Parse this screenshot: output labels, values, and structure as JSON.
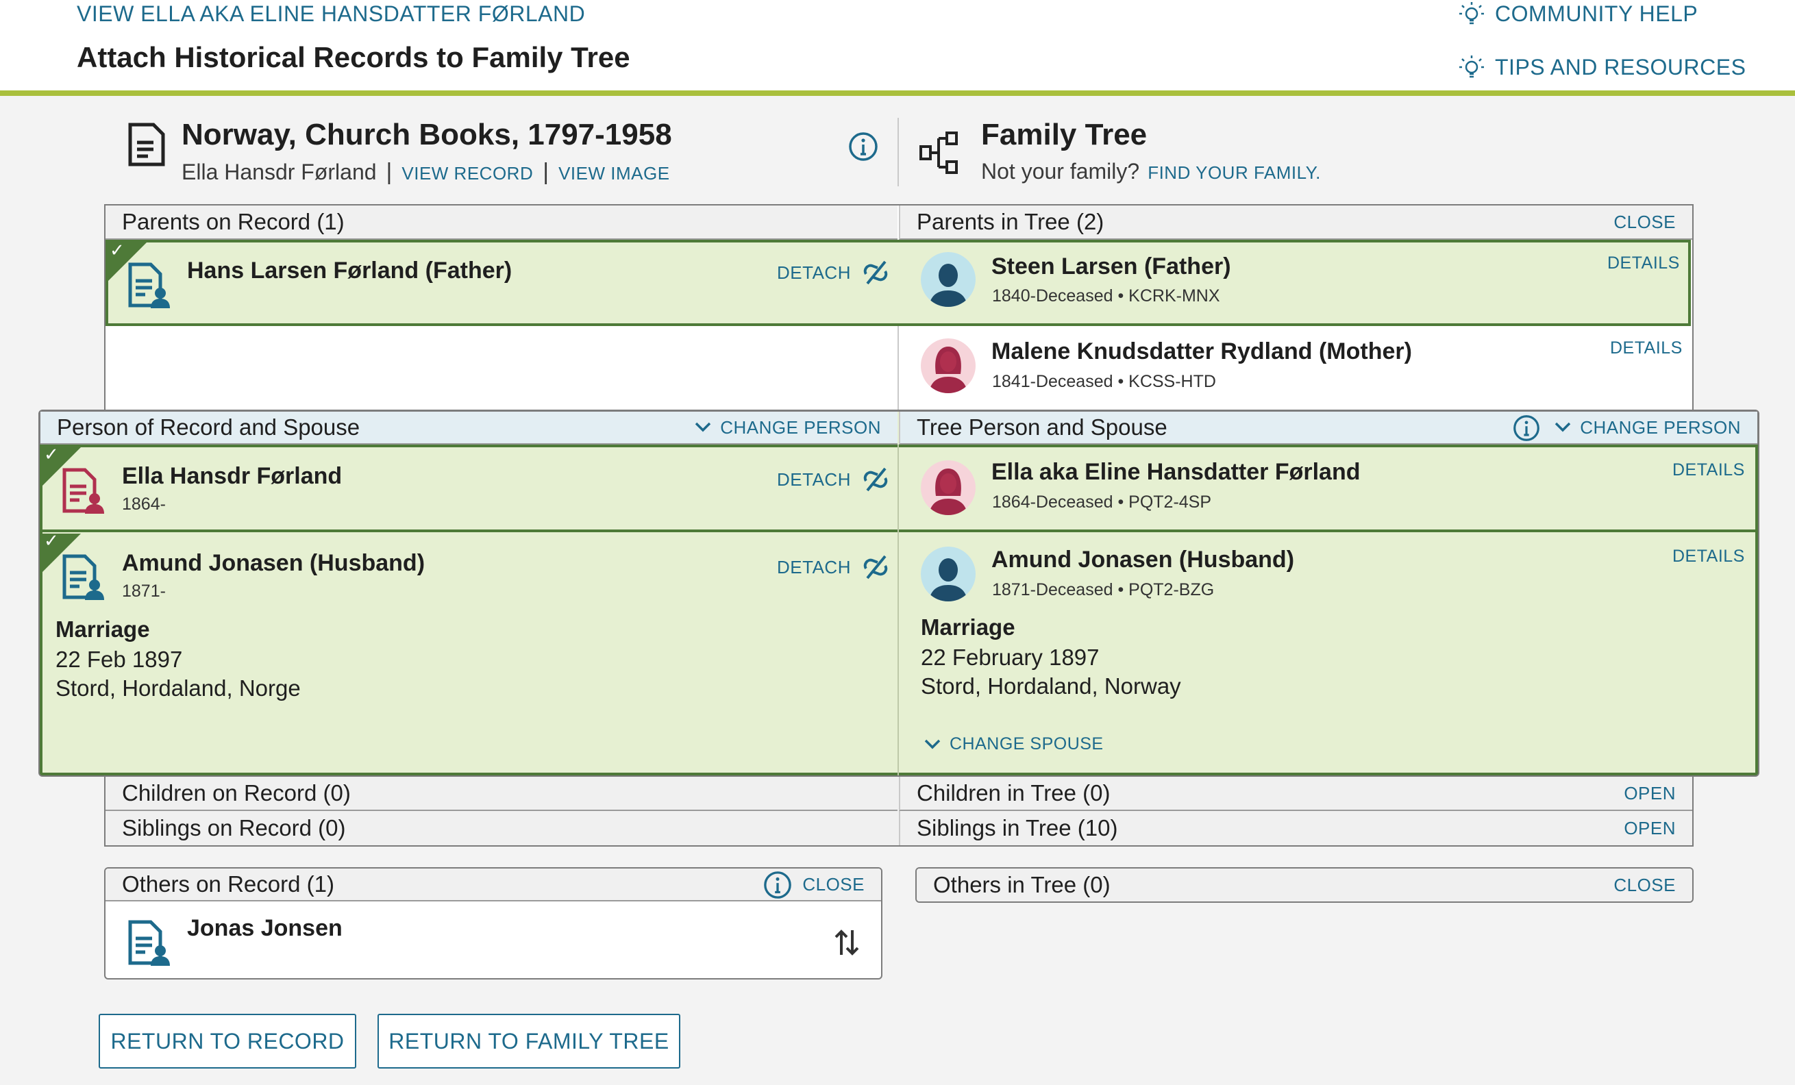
{
  "header": {
    "breadcrumb": "VIEW ELLA AKA ELINE HANSDATTER FØRLAND",
    "title": "Attach Historical Records to Family Tree",
    "community_help": "COMMUNITY HELP",
    "tips": "TIPS AND RESOURCES"
  },
  "record": {
    "title": "Norway, Church Books, 1797-1958",
    "person": "Ella Hansdr Førland",
    "separator": "|",
    "view_record": "VIEW RECORD",
    "view_image": "VIEW IMAGE"
  },
  "tree": {
    "title": "Family Tree",
    "not_family": "Not your family?",
    "find_family": "FIND YOUR FAMILY."
  },
  "parents": {
    "record_header": "Parents on Record (1)",
    "tree_header": "Parents in Tree (2)",
    "close": "CLOSE",
    "record_father": {
      "name": "Hans Larsen Førland (Father)",
      "detach": "DETACH"
    },
    "tree_father": {
      "name": "Steen Larsen (Father)",
      "meta": "1840-Deceased • KCRK-MNX",
      "details": "DETAILS"
    },
    "tree_mother": {
      "name": "Malene Knudsdatter Rydland (Mother)",
      "meta": "1841-Deceased • KCSS-HTD",
      "details": "DETAILS"
    }
  },
  "couple": {
    "record_header": "Person of Record and Spouse",
    "tree_header": "Tree Person and Spouse",
    "change_person": "CHANGE PERSON",
    "record_person": {
      "name": "Ella Hansdr Førland",
      "meta": "1864-",
      "detach": "DETACH"
    },
    "record_spouse": {
      "name": "Amund Jonasen (Husband)",
      "meta": "1871-",
      "detach": "DETACH"
    },
    "tree_person": {
      "name": "Ella aka Eline Hansdatter Førland",
      "meta": "1864-Deceased • PQT2-4SP",
      "details": "DETAILS"
    },
    "tree_spouse": {
      "name": "Amund Jonasen (Husband)",
      "meta": "1871-Deceased • PQT2-BZG",
      "details": "DETAILS"
    },
    "record_marriage": {
      "label": "Marriage",
      "date": "22 Feb 1897",
      "place": "Stord, Hordaland, Norge"
    },
    "tree_marriage": {
      "label": "Marriage",
      "date": "22 February 1897",
      "place": "Stord, Hordaland, Norway"
    },
    "change_spouse": "CHANGE SPOUSE"
  },
  "children": {
    "record": "Children on Record (0)",
    "tree": "Children in Tree (0)",
    "open": "OPEN"
  },
  "siblings": {
    "record": "Siblings on Record (0)",
    "tree": "Siblings in Tree (10)",
    "open": "OPEN"
  },
  "others": {
    "record_header": "Others on Record (1)",
    "tree_header": "Others in Tree (0)",
    "close": "CLOSE",
    "person": "Jonas Jonsen"
  },
  "buttons": {
    "return_record": "RETURN TO RECORD",
    "return_tree": "RETURN TO FAMILY TREE"
  },
  "colors": {
    "accent": "#1d6a8c",
    "match_green": "#e6f0d2",
    "match_border": "#4e7a38",
    "header_rule": "#a9bf3c",
    "record_female": "#b0304f"
  }
}
